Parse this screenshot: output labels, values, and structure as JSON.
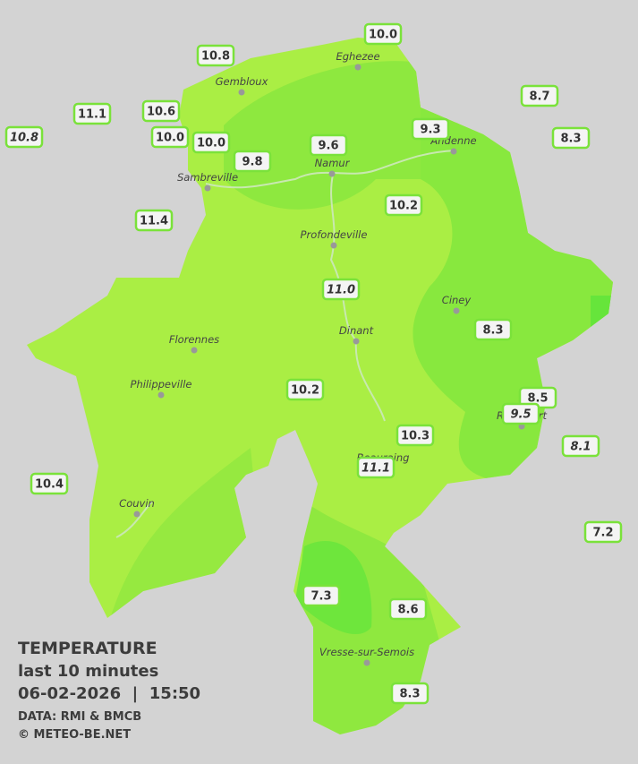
{
  "stations": [
    {
      "value": "10.0",
      "italic": false
    },
    {
      "value": "10.8",
      "italic": false
    },
    {
      "value": "8.7",
      "italic": false
    },
    {
      "value": "11.1",
      "italic": false
    },
    {
      "value": "10.6",
      "italic": false
    },
    {
      "value": "9.3",
      "italic": false
    },
    {
      "value": "8.3",
      "italic": false
    },
    {
      "value": "10.8",
      "italic": true
    },
    {
      "value": "10.0",
      "italic": false
    },
    {
      "value": "10.0",
      "italic": false
    },
    {
      "value": "9.6",
      "italic": false
    },
    {
      "value": "9.8",
      "italic": false
    },
    {
      "value": "10.2",
      "italic": false
    },
    {
      "value": "11.4",
      "italic": false
    },
    {
      "value": "11.0",
      "italic": true
    },
    {
      "value": "8.3",
      "italic": false
    },
    {
      "value": "8.5",
      "italic": false
    },
    {
      "value": "10.2",
      "italic": false
    },
    {
      "value": "9.5",
      "italic": true
    },
    {
      "value": "8.1",
      "italic": true
    },
    {
      "value": "10.3",
      "italic": false
    },
    {
      "value": "11.1",
      "italic": true
    },
    {
      "value": "10.4",
      "italic": false
    },
    {
      "value": "7.2",
      "italic": false
    },
    {
      "value": "7.3",
      "italic": false
    },
    {
      "value": "8.6",
      "italic": false
    },
    {
      "value": "8.3",
      "italic": false
    }
  ],
  "towns": [
    "Eghezee",
    "Gembloux",
    "Andenne",
    "Namur",
    "Sambreville",
    "Profondeville",
    "Ciney",
    "Dinant",
    "Florennes",
    "Philippeville",
    "Rochefort",
    "Beauraing",
    "Couvin",
    "Vresse-sur-Semois"
  ],
  "legend": {
    "title": "TEMPERATURE",
    "subtitle": "last 10 minutes",
    "datetime": "06-02-2026  |  15:50",
    "source": "DATA: RMI & BMCB",
    "copyright": "© METEO-BE.NET"
  }
}
